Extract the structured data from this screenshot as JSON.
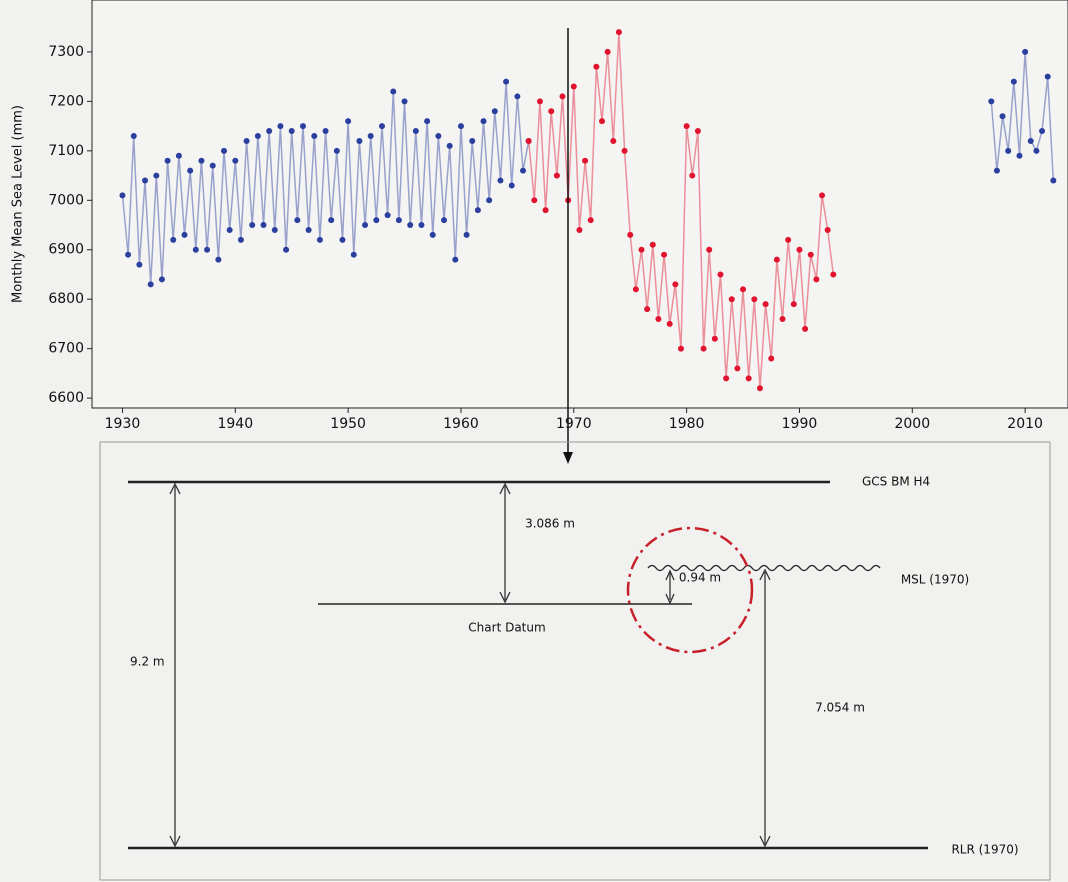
{
  "chart_data": {
    "type": "line",
    "ylabel": "Monthly Mean Sea Level (mm)",
    "xlim": [
      1927.3,
      2013.8
    ],
    "xticks": [
      1930,
      1940,
      1950,
      1960,
      1970,
      1980,
      1990,
      2000,
      2010
    ],
    "ylim": [
      6580,
      7405
    ],
    "yticks": [
      6600,
      6700,
      6800,
      6900,
      7000,
      7100,
      7200,
      7300
    ],
    "series": [
      {
        "color": "#2b3f9e",
        "x": [
          1930,
          1930.5,
          1931,
          1931.5,
          1932,
          1932.5,
          1933,
          1933.5,
          1934,
          1934.5,
          1935,
          1935.5,
          1936,
          1936.5,
          1937,
          1937.5,
          1938,
          1938.5,
          1939,
          1939.5,
          1940,
          1940.5,
          1941,
          1941.5,
          1942,
          1942.5,
          1943,
          1943.5,
          1944,
          1944.5,
          1945,
          1945.5,
          1946,
          1946.5,
          1947,
          1947.5,
          1948,
          1948.5,
          1949,
          1949.5,
          1950,
          1950.5,
          1951,
          1951.5,
          1952,
          1952.5,
          1953,
          1953.5,
          1954,
          1954.5,
          1955,
          1955.5,
          1956,
          1956.5,
          1957,
          1957.5,
          1958,
          1958.5,
          1959,
          1959.5,
          1960,
          1960.5,
          1961,
          1961.5,
          1962,
          1962.5,
          1963,
          1963.5,
          1964,
          1964.5,
          1965,
          1965.5,
          1966
        ],
        "values": [
          7010,
          6890,
          7130,
          6870,
          7040,
          6830,
          7050,
          6840,
          7080,
          6920,
          7090,
          6930,
          7060,
          6900,
          7080,
          6900,
          7070,
          6880,
          7100,
          6940,
          7080,
          6920,
          7120,
          6950,
          7130,
          6950,
          7140,
          6940,
          7150,
          6900,
          7140,
          6960,
          7150,
          6940,
          7130,
          6920,
          7140,
          6960,
          7100,
          6920,
          7160,
          6890,
          7120,
          6950,
          7130,
          6960,
          7150,
          6970,
          7220,
          6960,
          7200,
          6950,
          7140,
          6950,
          7160,
          6930,
          7130,
          6960,
          7110,
          6880,
          7150,
          6930,
          7120,
          6980,
          7160,
          7000,
          7180,
          7040,
          7240,
          7030,
          7210,
          7060,
          7120
        ]
      },
      {
        "color": "#e0142e",
        "x": [
          1966,
          1966.5,
          1967,
          1967.5,
          1968,
          1968.5,
          1969,
          1969.5,
          1970,
          1970.5,
          1971,
          1971.5,
          1972,
          1972.5,
          1973,
          1973.5,
          1974,
          1974.5,
          1975,
          1975.5,
          1976,
          1976.5,
          1977,
          1977.5,
          1978,
          1978.5,
          1979,
          1979.5,
          1980,
          1980.5,
          1981,
          1981.5,
          1982,
          1982.5,
          1983,
          1983.5,
          1984,
          1984.5,
          1985,
          1985.5,
          1986,
          1986.5,
          1987,
          1987.5,
          1988,
          1988.5,
          1989,
          1989.5,
          1990,
          1990.5,
          1991,
          1991.5,
          1992,
          1992.5,
          1993
        ],
        "values": [
          7120,
          7000,
          7200,
          6980,
          7180,
          7050,
          7210,
          7000,
          7230,
          6940,
          7080,
          6960,
          7270,
          7160,
          7300,
          7120,
          7340,
          7100,
          6930,
          6820,
          6900,
          6780,
          6910,
          6760,
          6890,
          6750,
          6830,
          6700,
          7150,
          7050,
          7140,
          6700,
          6900,
          6720,
          6850,
          6640,
          6800,
          6660,
          6820,
          6640,
          6800,
          6620,
          6790,
          6680,
          6880,
          6760,
          6920,
          6790,
          6900,
          6740,
          6890,
          6840,
          7010,
          6940,
          6850
        ]
      },
      {
        "color": "#2b3f9e",
        "x": [
          2007,
          2007.5,
          2008,
          2008.5,
          2009,
          2009.5,
          2010,
          2010.5,
          2011,
          2011.5,
          2012,
          2012.5
        ],
        "values": [
          7200,
          7060,
          7170,
          7100,
          7240,
          7090,
          7300,
          7120,
          7100,
          7140,
          7250,
          7040
        ]
      }
    ]
  },
  "diagram": {
    "levels": [
      "GCS BM H4",
      "Chart Datum",
      "MSL (1970)",
      "RLR (1970)"
    ],
    "distances": [
      "9.2 m",
      "3.086 m",
      "0.94 m",
      "7.054 m"
    ]
  }
}
